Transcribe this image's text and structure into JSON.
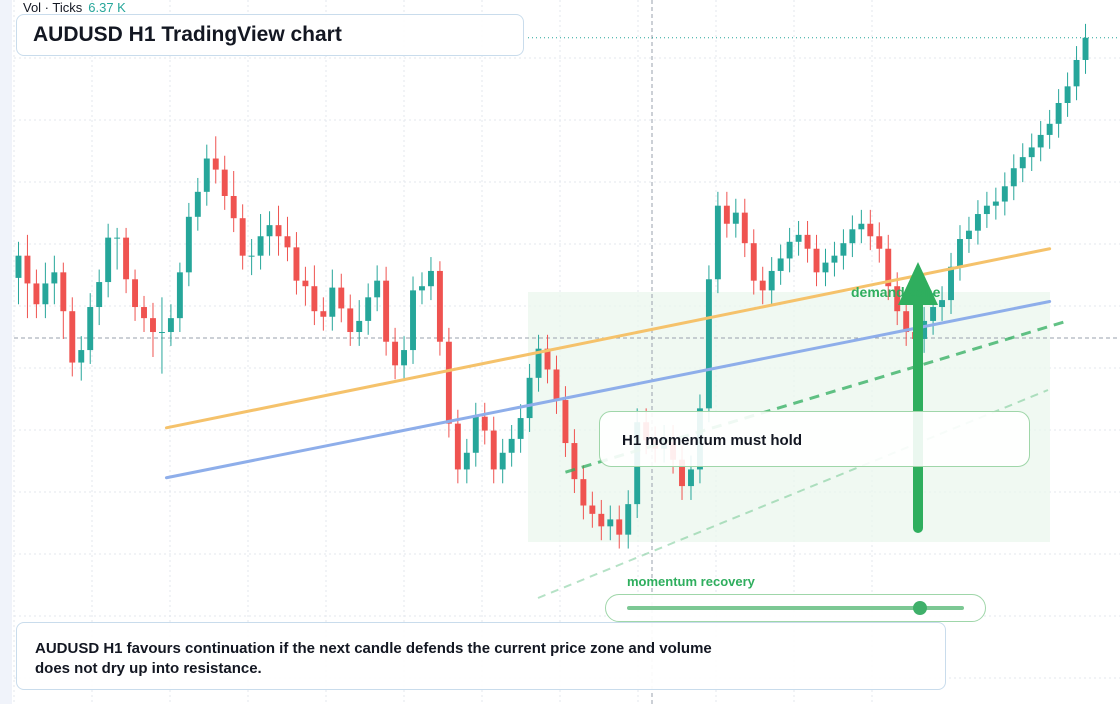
{
  "header": {
    "vol_label": "Vol · Ticks",
    "vol_value": "6.37 K",
    "title": "AUDUSD H1 TradingView chart"
  },
  "annotations": {
    "zone_label": "demand zone",
    "callout": "H1 momentum must hold",
    "momentum_label": "momentum recovery",
    "momentum_level": 0.87,
    "note": "AUDUSD H1 favours continuation if the next candle defends the current price zone and volume does not dry up into resistance."
  },
  "colors": {
    "up": "#26a69a",
    "down": "#ef5350",
    "trend_orange": "#f5c26b",
    "trend_blue": "#8eaeea",
    "forecast_green": "#2fae5e",
    "zone_fill": "#eaf7ec"
  },
  "chart_data": {
    "type": "candlestick",
    "title": "AUDUSD H1 TradingView chart",
    "ylim": [
      0,
      100
    ],
    "candle_count": 120,
    "candles": [
      [
        61.4,
        64.6,
        57.6,
        66.6
      ],
      [
        64.6,
        60.6,
        55.6,
        67.6
      ],
      [
        60.6,
        57.6,
        55.6,
        62.6
      ],
      [
        57.6,
        60.6,
        55.6,
        63.6
      ],
      [
        60.6,
        62.2,
        57.6,
        64.6
      ],
      [
        62.2,
        56.6,
        52.6,
        63.6
      ],
      [
        56.6,
        49.2,
        47.2,
        58.6
      ],
      [
        49.2,
        51.0,
        46.6,
        53.0
      ],
      [
        51.0,
        57.2,
        49.0,
        59.2
      ],
      [
        57.2,
        60.8,
        54.6,
        62.6
      ],
      [
        60.8,
        67.2,
        58.6,
        69.2
      ],
      [
        67.2,
        67.2,
        62.6,
        68.6
      ],
      [
        67.2,
        61.2,
        59.2,
        68.6
      ],
      [
        61.2,
        57.2,
        55.2,
        62.6
      ],
      [
        57.2,
        55.6,
        53.6,
        58.8
      ],
      [
        55.6,
        53.6,
        50.0,
        57.8
      ],
      [
        53.6,
        53.6,
        47.6,
        58.6
      ],
      [
        53.6,
        55.6,
        51.6,
        57.6
      ],
      [
        55.6,
        62.2,
        53.6,
        63.6
      ],
      [
        62.2,
        70.2,
        60.2,
        72.2
      ],
      [
        70.2,
        73.8,
        68.2,
        75.8
      ],
      [
        73.8,
        78.6,
        71.8,
        80.6
      ],
      [
        78.6,
        77.0,
        75.0,
        81.8
      ],
      [
        77.0,
        73.2,
        71.2,
        79.0
      ],
      [
        73.2,
        70.0,
        68.0,
        76.8
      ],
      [
        70.0,
        64.6,
        62.6,
        72.0
      ],
      [
        64.6,
        64.6,
        61.8,
        67.0
      ],
      [
        64.6,
        67.4,
        62.6,
        70.6
      ],
      [
        67.4,
        69.0,
        64.6,
        71.0
      ],
      [
        69.0,
        67.4,
        64.6,
        71.8
      ],
      [
        67.4,
        65.8,
        63.8,
        70.2
      ],
      [
        65.8,
        61.0,
        59.0,
        68.0
      ],
      [
        61.0,
        60.2,
        57.4,
        63.0
      ],
      [
        60.2,
        56.6,
        54.6,
        63.2
      ],
      [
        56.6,
        55.8,
        53.8,
        58.6
      ],
      [
        55.8,
        60.0,
        53.8,
        62.6
      ],
      [
        60.0,
        57.0,
        55.0,
        62.0
      ],
      [
        57.0,
        53.6,
        51.6,
        59.0
      ],
      [
        53.6,
        55.2,
        51.6,
        58.2
      ],
      [
        55.2,
        58.6,
        53.2,
        60.6
      ],
      [
        58.6,
        61.0,
        56.6,
        63.2
      ],
      [
        61.0,
        52.2,
        50.2,
        63.0
      ],
      [
        52.2,
        48.8,
        46.8,
        54.2
      ],
      [
        48.8,
        51.0,
        46.8,
        53.0
      ],
      [
        51.0,
        59.6,
        49.0,
        61.6
      ],
      [
        59.6,
        60.2,
        57.6,
        62.2
      ],
      [
        60.2,
        62.4,
        58.2,
        64.4
      ],
      [
        62.4,
        52.2,
        50.2,
        63.8
      ],
      [
        52.2,
        40.4,
        38.4,
        54.2
      ],
      [
        40.4,
        33.8,
        31.8,
        42.4
      ],
      [
        33.8,
        36.2,
        31.8,
        38.2
      ],
      [
        36.2,
        41.4,
        34.2,
        43.4
      ],
      [
        41.4,
        39.4,
        37.4,
        43.4
      ],
      [
        39.4,
        33.8,
        31.8,
        41.4
      ],
      [
        33.8,
        36.2,
        31.8,
        38.2
      ],
      [
        36.2,
        38.2,
        34.2,
        40.2
      ],
      [
        38.2,
        41.2,
        36.2,
        43.2
      ],
      [
        41.2,
        47.0,
        39.2,
        49.0
      ],
      [
        47.0,
        51.2,
        45.0,
        53.2
      ],
      [
        51.2,
        48.2,
        46.2,
        53.2
      ],
      [
        48.2,
        43.8,
        41.8,
        50.2
      ],
      [
        43.8,
        37.6,
        35.6,
        45.8
      ],
      [
        37.6,
        32.4,
        30.4,
        39.6
      ],
      [
        32.4,
        28.6,
        26.6,
        34.4
      ],
      [
        28.6,
        27.4,
        25.4,
        30.6
      ],
      [
        27.4,
        25.6,
        23.6,
        29.4
      ],
      [
        25.6,
        26.6,
        23.6,
        28.6
      ],
      [
        26.6,
        24.4,
        22.4,
        28.6
      ],
      [
        24.4,
        28.8,
        22.4,
        30.8
      ],
      [
        28.8,
        40.6,
        26.8,
        42.6
      ],
      [
        40.6,
        38.0,
        36.0,
        42.6
      ],
      [
        38.0,
        36.8,
        34.8,
        40.0
      ],
      [
        36.8,
        38.2,
        34.8,
        40.2
      ],
      [
        38.2,
        35.2,
        33.2,
        40.2
      ],
      [
        35.2,
        31.4,
        29.4,
        37.2
      ],
      [
        31.4,
        33.8,
        29.4,
        35.8
      ],
      [
        33.8,
        42.6,
        31.8,
        44.6
      ],
      [
        42.6,
        61.2,
        40.6,
        63.2
      ],
      [
        61.2,
        71.8,
        59.2,
        73.8
      ],
      [
        71.8,
        69.2,
        67.2,
        73.8
      ],
      [
        69.2,
        70.8,
        67.2,
        72.8
      ],
      [
        70.8,
        66.4,
        64.4,
        72.8
      ],
      [
        66.4,
        61.0,
        59.0,
        68.4
      ],
      [
        61.0,
        59.6,
        57.6,
        63.0
      ],
      [
        59.6,
        62.4,
        57.6,
        64.4
      ],
      [
        62.4,
        64.2,
        60.4,
        66.2
      ],
      [
        64.2,
        66.6,
        62.2,
        68.6
      ],
      [
        66.6,
        67.6,
        64.6,
        69.6
      ],
      [
        67.6,
        65.6,
        63.6,
        69.6
      ],
      [
        65.6,
        62.2,
        60.2,
        67.6
      ],
      [
        62.2,
        63.6,
        60.2,
        65.6
      ],
      [
        63.6,
        64.6,
        61.6,
        66.6
      ],
      [
        64.6,
        66.4,
        62.6,
        68.4
      ],
      [
        66.4,
        68.4,
        64.4,
        70.4
      ],
      [
        68.4,
        69.2,
        66.4,
        71.2
      ],
      [
        69.2,
        67.4,
        65.4,
        71.2
      ],
      [
        67.4,
        65.6,
        63.6,
        69.4
      ],
      [
        65.6,
        60.2,
        58.2,
        67.6
      ],
      [
        60.2,
        56.6,
        54.6,
        62.2
      ],
      [
        56.6,
        53.6,
        51.6,
        58.6
      ],
      [
        53.6,
        52.6,
        50.6,
        55.6
      ],
      [
        52.6,
        55.2,
        50.6,
        57.2
      ],
      [
        55.2,
        57.2,
        53.2,
        59.2
      ],
      [
        57.2,
        58.2,
        55.2,
        60.2
      ],
      [
        58.2,
        63.0,
        56.2,
        65.0
      ],
      [
        63.0,
        67.0,
        61.0,
        69.0
      ],
      [
        67.0,
        68.2,
        65.0,
        70.2
      ],
      [
        68.2,
        70.6,
        66.2,
        72.6
      ],
      [
        70.6,
        71.8,
        68.6,
        73.8
      ],
      [
        71.8,
        72.4,
        69.8,
        74.4
      ],
      [
        72.4,
        74.6,
        70.4,
        76.6
      ],
      [
        74.6,
        77.2,
        72.6,
        79.2
      ],
      [
        77.2,
        78.8,
        75.2,
        80.8
      ],
      [
        78.8,
        80.2,
        76.8,
        82.2
      ],
      [
        80.2,
        82.0,
        78.2,
        84.0
      ],
      [
        82.0,
        83.6,
        80.0,
        85.6
      ],
      [
        83.6,
        86.6,
        81.6,
        88.6
      ],
      [
        86.6,
        89.0,
        84.6,
        91.0
      ],
      [
        89.0,
        92.8,
        87.0,
        94.8
      ],
      [
        92.8,
        96.0,
        90.8,
        98.0
      ]
    ],
    "volume_bars": [
      0.0,
      0.0,
      0.0,
      0.0,
      0.0,
      0.0,
      0.0,
      0.0,
      0.0,
      0.0,
      0.0,
      0.0,
      0.0,
      0.0,
      0.0,
      0.0,
      0.0,
      0.0,
      0.0,
      0.0,
      0.0,
      0.0,
      0.0,
      0.0,
      0.0,
      0.0,
      0.0,
      0.0,
      0.0,
      0.0,
      0.0,
      0.0,
      0.0,
      0.0,
      0.0,
      0.0,
      0.0,
      0.0,
      0.0,
      0.0,
      0.0,
      0.0,
      0.0,
      0.0,
      0.0,
      0.0,
      0.0,
      0.0,
      0.0,
      0.0,
      0.0,
      0.0,
      0.0,
      0.0,
      0.0,
      0.0,
      0.0,
      0.0,
      0.0,
      0.0,
      0.0,
      0.0,
      0.0,
      0.0,
      0.0,
      0.0,
      0.0,
      0.0,
      0.0,
      0.0,
      0.0,
      0.0,
      0.0,
      0.0,
      0.0,
      0.0,
      0.0,
      0.0,
      0.0,
      0.0,
      0.0,
      0.0,
      0.0,
      0.0,
      0.0,
      0.0,
      0.0,
      0.0,
      0.0,
      0.0,
      0.0,
      0.0,
      0.0,
      0.0,
      0.0,
      0.0,
      0.0,
      0.0,
      0.0,
      0.0,
      0.0,
      0.0,
      0.0,
      0.0,
      0.0,
      0.0,
      0.0,
      0.0,
      0.0,
      0.0,
      0.0,
      0.0,
      0.0,
      0.0,
      0.0,
      0.0,
      0.0,
      0.0,
      0.0,
      0.0
    ],
    "trendlines": [
      {
        "role": "upper",
        "from": [
          16.5,
          39.8
        ],
        "to": [
          115,
          65.6
        ]
      },
      {
        "role": "lower",
        "from": [
          16.5,
          32.6
        ],
        "to": [
          115,
          58.0
        ]
      },
      {
        "role": "forecast",
        "from": [
          61,
          33.4
        ],
        "to": [
          117,
          55.2
        ]
      }
    ]
  }
}
